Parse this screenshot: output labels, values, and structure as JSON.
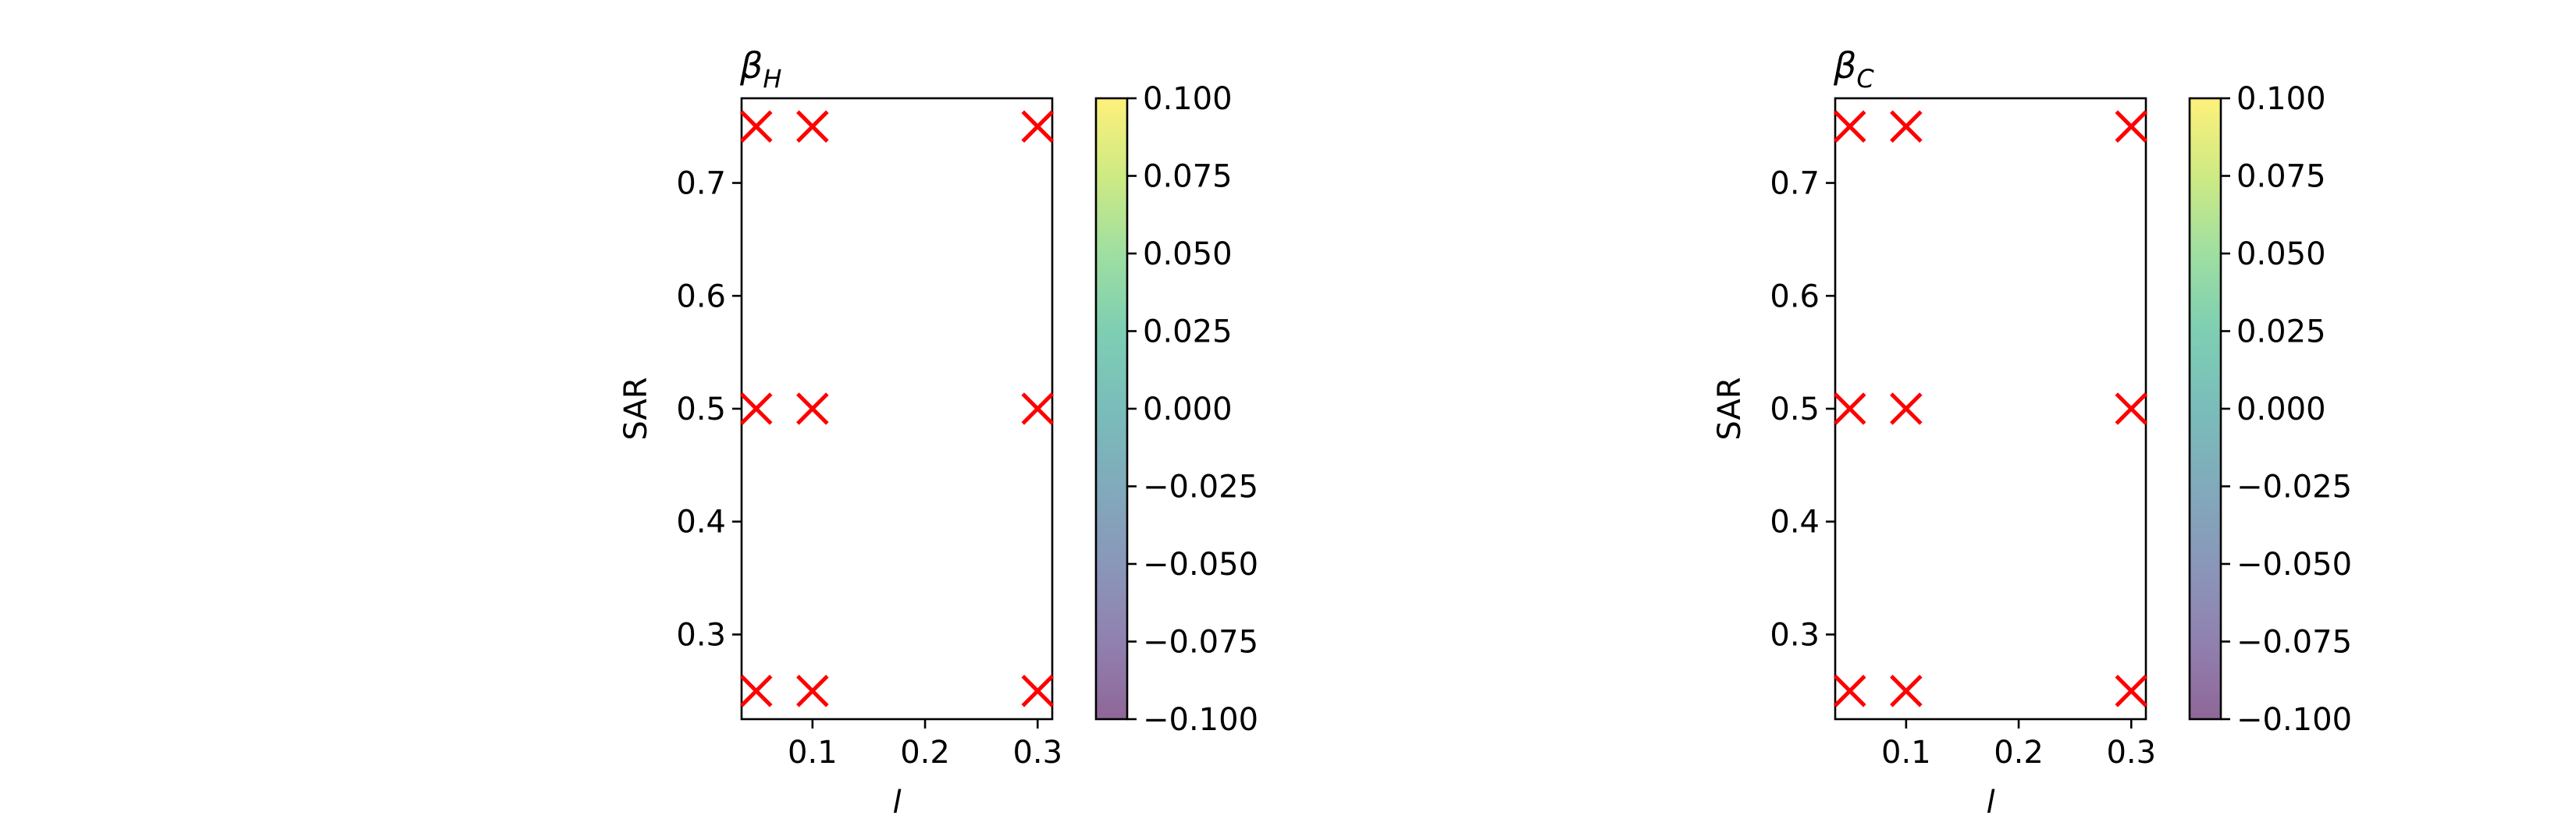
{
  "chart_data": [
    {
      "type": "scatter",
      "title": "β",
      "title_subscript": "H",
      "xlabel": "l",
      "ylabel": "SAR",
      "xlim": [
        0.037,
        0.313
      ],
      "ylim": [
        0.225,
        0.775
      ],
      "xticks": [
        0.1,
        0.2,
        0.3
      ],
      "xtick_labels": [
        "0.1",
        "0.2",
        "0.3"
      ],
      "yticks": [
        0.3,
        0.4,
        0.5,
        0.6,
        0.7
      ],
      "ytick_labels": [
        "0.3",
        "0.4",
        "0.5",
        "0.6",
        "0.7"
      ],
      "grid": false,
      "marker": "x",
      "marker_color": "#ff0000",
      "points": [
        {
          "x": 0.05,
          "y": 0.75
        },
        {
          "x": 0.1,
          "y": 0.75
        },
        {
          "x": 0.3,
          "y": 0.75
        },
        {
          "x": 0.05,
          "y": 0.5
        },
        {
          "x": 0.1,
          "y": 0.5
        },
        {
          "x": 0.3,
          "y": 0.5
        },
        {
          "x": 0.05,
          "y": 0.25
        },
        {
          "x": 0.1,
          "y": 0.25
        },
        {
          "x": 0.3,
          "y": 0.25
        }
      ],
      "colorbar": {
        "colormap": "viridis",
        "alpha": 0.6,
        "range": [
          -0.1,
          0.1
        ],
        "ticks": [
          0.1,
          0.075,
          0.05,
          0.025,
          0.0,
          -0.025,
          -0.05,
          -0.075,
          -0.1
        ],
        "tick_labels": [
          "0.100",
          "0.075",
          "0.050",
          "0.025",
          "0.000",
          "−0.025",
          "−0.050",
          "−0.075",
          "−0.100"
        ]
      }
    },
    {
      "type": "scatter",
      "title": "β",
      "title_subscript": "C",
      "xlabel": "l",
      "ylabel": "SAR",
      "xlim": [
        0.037,
        0.313
      ],
      "ylim": [
        0.225,
        0.775
      ],
      "xticks": [
        0.1,
        0.2,
        0.3
      ],
      "xtick_labels": [
        "0.1",
        "0.2",
        "0.3"
      ],
      "yticks": [
        0.3,
        0.4,
        0.5,
        0.6,
        0.7
      ],
      "ytick_labels": [
        "0.3",
        "0.4",
        "0.5",
        "0.6",
        "0.7"
      ],
      "grid": false,
      "marker": "x",
      "marker_color": "#ff0000",
      "points": [
        {
          "x": 0.05,
          "y": 0.75
        },
        {
          "x": 0.1,
          "y": 0.75
        },
        {
          "x": 0.3,
          "y": 0.75
        },
        {
          "x": 0.05,
          "y": 0.5
        },
        {
          "x": 0.1,
          "y": 0.5
        },
        {
          "x": 0.3,
          "y": 0.5
        },
        {
          "x": 0.05,
          "y": 0.25
        },
        {
          "x": 0.1,
          "y": 0.25
        },
        {
          "x": 0.3,
          "y": 0.25
        }
      ],
      "colorbar": {
        "colormap": "viridis",
        "alpha": 0.6,
        "range": [
          -0.1,
          0.1
        ],
        "ticks": [
          0.1,
          0.075,
          0.05,
          0.025,
          0.0,
          -0.025,
          -0.05,
          -0.075,
          -0.1
        ],
        "tick_labels": [
          "0.100",
          "0.075",
          "0.050",
          "0.025",
          "0.000",
          "−0.025",
          "−0.050",
          "−0.075",
          "−0.100"
        ]
      }
    }
  ]
}
